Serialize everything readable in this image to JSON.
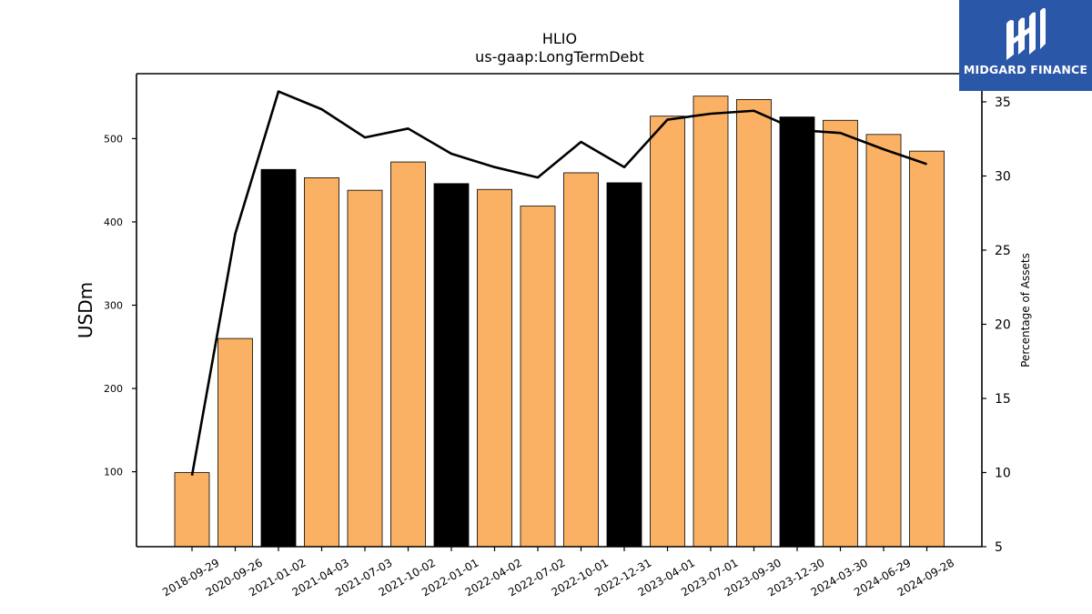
{
  "brand": {
    "name": "MIDGARD FINANCE",
    "bg_color": "#2b57a8"
  },
  "chart_data": {
    "type": "bar",
    "title": "HLIO",
    "subtitle": "us-gaap:LongTermDebt",
    "ylabel": "USDm",
    "y2label": "Percentage of Assets",
    "categories": [
      "2018-09-29",
      "2020-09-26",
      "2021-01-02",
      "2021-04-03",
      "2021-07-03",
      "2021-10-02",
      "2022-01-01",
      "2022-04-02",
      "2022-07-02",
      "2022-10-01",
      "2022-12-31",
      "2023-04-01",
      "2023-07-01",
      "2023-09-30",
      "2023-12-30",
      "2024-03-30",
      "2024-06-29",
      "2024-09-28"
    ],
    "series": [
      {
        "type": "bar",
        "axis": "left",
        "values": [
          99,
          260,
          463,
          453,
          438,
          472,
          446,
          439,
          419,
          459,
          447,
          527,
          551,
          547,
          526,
          522,
          505,
          485
        ],
        "colors": [
          "#fbb163",
          "#fbb163",
          "#000000",
          "#fbb163",
          "#fbb163",
          "#fbb163",
          "#000000",
          "#fbb163",
          "#fbb163",
          "#fbb163",
          "#000000",
          "#fbb163",
          "#fbb163",
          "#fbb163",
          "#000000",
          "#fbb163",
          "#fbb163",
          "#fbb163"
        ]
      },
      {
        "type": "line",
        "axis": "right",
        "color": "#000000",
        "values": [
          9.8,
          26.1,
          35.7,
          34.5,
          32.6,
          33.2,
          31.5,
          30.6,
          29.9,
          32.3,
          30.6,
          33.8,
          34.2,
          34.4,
          33.1,
          32.9,
          31.8,
          30.8
        ]
      }
    ],
    "ylim": [
      10,
      578
    ],
    "yticks": [
      100,
      200,
      300,
      400,
      500
    ],
    "y2lim": [
      5,
      36.9
    ],
    "y2ticks": [
      5,
      10,
      15,
      20,
      25,
      30,
      35
    ],
    "grid": false
  }
}
